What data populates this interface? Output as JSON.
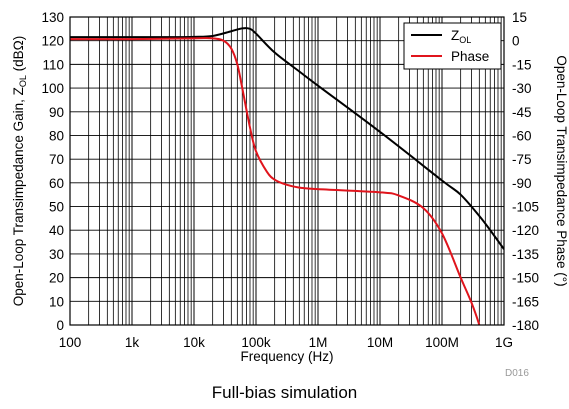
{
  "caption": "Full-bias simulation",
  "chart_data": {
    "type": "line",
    "xscale": "log",
    "xlim": [
      100,
      1000000000
    ],
    "xticks": [
      100,
      1000,
      10000,
      100000,
      1000000,
      10000000,
      100000000,
      1000000000
    ],
    "xticklabels": [
      "100",
      "1k",
      "10k",
      "100k",
      "1M",
      "10M",
      "100M",
      "1G"
    ],
    "xlabel": "Frequency (Hz)",
    "ylim": [
      0,
      130
    ],
    "yticks": [
      0,
      10,
      20,
      30,
      40,
      50,
      60,
      70,
      80,
      90,
      100,
      110,
      120,
      130
    ],
    "ylabel_main": "Open-Loop Transimpedance Gain, Z",
    "ylabel_sub": "OL",
    "ylabel_unit": " (dBΩ)",
    "y2lim": [
      -180,
      15
    ],
    "y2ticks": [
      15,
      0,
      -15,
      -30,
      -45,
      -60,
      -75,
      -90,
      -105,
      -120,
      -135,
      -150,
      -165,
      -180
    ],
    "y2label": "Open-Loop Transimpedance Phase (°)",
    "grid": true,
    "legend_position": "top-right",
    "figure_id": "D016",
    "series": [
      {
        "name_main": "Z",
        "name_sub": "OL",
        "axis": "left",
        "color": "#000000",
        "x": [
          100,
          1000,
          5000,
          10000,
          20000,
          40000,
          60000,
          80000,
          100000,
          200000,
          500000,
          1000000,
          10000000,
          100000000,
          200000000,
          400000000,
          600000000,
          1000000000
        ],
        "y": [
          121.5,
          121.5,
          121.5,
          121.6,
          122,
          124,
          125.2,
          125,
          123,
          115,
          107,
          101,
          81.5,
          61,
          55,
          46,
          40,
          32
        ]
      },
      {
        "name": "Phase",
        "axis": "right",
        "color": "#e0141c",
        "x": [
          100,
          1000,
          10000,
          20000,
          30000,
          40000,
          50000,
          60000,
          80000,
          100000,
          150000,
          200000,
          300000,
          500000,
          1000000,
          10000000,
          20000000,
          50000000,
          100000000,
          200000000,
          300000000,
          400000000,
          450000000
        ],
        "y": [
          1,
          1,
          1.5,
          1.5,
          0,
          -5,
          -15,
          -30,
          -55,
          -70,
          -83,
          -88,
          -91,
          -93,
          -94,
          -96,
          -98,
          -106,
          -122,
          -150,
          -166,
          -180,
          -188
        ]
      }
    ]
  }
}
